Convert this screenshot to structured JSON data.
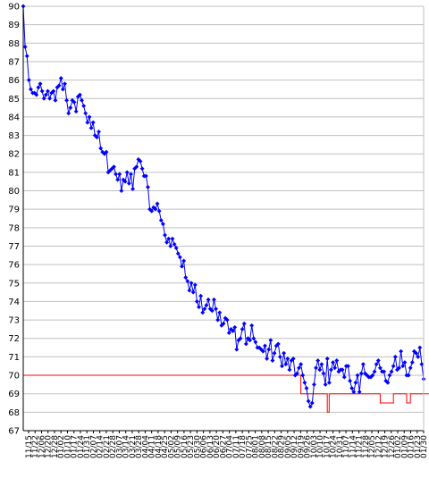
{
  "chart_data": {
    "type": "line",
    "title": "",
    "xlabel": "",
    "ylabel": "",
    "ylim": [
      67,
      90
    ],
    "yticks": [
      67,
      68,
      69,
      70,
      71,
      72,
      73,
      74,
      75,
      76,
      77,
      78,
      79,
      80,
      81,
      82,
      83,
      84,
      85,
      86,
      87,
      88,
      89,
      90
    ],
    "grid": true,
    "legend": "none",
    "x_tick_labels": [
      "11/15",
      "11/22",
      "12/06",
      "12/20",
      "12/28",
      "01/02",
      "01/10",
      "01/17",
      "01/24",
      "01/31",
      "02/07",
      "02/14",
      "02/21",
      "02/28",
      "03/07",
      "03/14",
      "03/21",
      "03/28",
      "04/04",
      "04/11",
      "04/18",
      "04/25",
      "05/02",
      "05/09",
      "05/16",
      "05/23",
      "05/30",
      "06/06",
      "06/13",
      "06/20",
      "06/27",
      "07/04",
      "07/11",
      "07/18",
      "07/25",
      "08/01",
      "08/08",
      "08/15",
      "08/22",
      "08/29",
      "09/05",
      "09/12",
      "09/19",
      "09/26",
      "10/03",
      "10/10",
      "10/17",
      "10/24",
      "10/31",
      "11/07",
      "11/14",
      "11/21",
      "11/28",
      "12/05",
      "12/12",
      "12/19",
      "12/26",
      "01/02",
      "01/09",
      "01/16",
      "01/23",
      "01/30"
    ],
    "series": [
      {
        "color": "#0000ff",
        "marker": "diamond",
        "values": [
          90.0,
          87.8,
          87.3,
          86.0,
          85.5,
          85.3,
          85.3,
          85.2,
          85.6,
          85.8,
          85.4,
          85.0,
          85.2,
          85.4,
          85.0,
          85.3,
          85.4,
          84.9,
          85.6,
          85.7,
          86.1,
          85.5,
          85.8,
          84.9,
          84.2,
          84.5,
          84.9,
          84.8,
          84.3,
          85.1,
          85.2,
          84.9,
          84.6,
          84.2,
          83.7,
          84.0,
          83.4,
          83.7,
          83.0,
          82.9,
          83.2,
          82.3,
          82.1,
          82.0,
          82.1,
          81.0,
          81.1,
          81.2,
          81.3,
          80.9,
          80.6,
          80.9,
          80.0,
          80.6,
          80.5,
          81.0,
          80.4,
          80.9,
          80.1,
          81.2,
          81.3,
          81.7,
          81.6,
          81.2,
          80.8,
          80.8,
          80.2,
          79.0,
          78.9,
          79.1,
          79.0,
          79.3,
          78.9,
          78.4,
          78.2,
          77.6,
          77.2,
          77.4,
          77.0,
          77.4,
          77.1,
          76.9,
          76.6,
          76.4,
          75.9,
          76.2,
          75.3,
          75.1,
          74.6,
          75.0,
          74.5,
          74.9,
          74.0,
          73.7,
          74.3,
          73.4,
          73.6,
          73.8,
          74.1,
          73.6,
          73.5,
          74.1,
          73.6,
          73.0,
          73.4,
          72.7,
          72.8,
          73.1,
          73.0,
          72.3,
          72.5,
          72.4,
          72.6,
          71.4,
          71.9,
          72.0,
          72.5,
          72.8,
          71.7,
          72.0,
          71.9,
          72.7,
          72.0,
          71.8,
          71.5,
          71.5,
          71.4,
          71.3,
          71.6,
          70.9,
          71.4,
          71.9,
          70.8,
          71.2,
          71.6,
          71.7,
          71.0,
          70.5,
          71.2,
          70.6,
          70.9,
          70.3,
          70.8,
          70.9,
          70.0,
          70.1,
          70.4,
          70.6,
          70.0,
          69.6,
          69.3,
          68.6,
          68.3,
          68.5,
          69.5,
          70.4,
          70.8,
          70.3,
          70.6,
          70.1,
          69.5,
          70.9,
          69.6,
          70.3,
          70.7,
          70.4,
          70.8,
          70.2,
          70.3,
          70.3,
          69.9,
          70.5,
          70.5,
          69.7,
          69.3,
          69.1,
          69.6,
          70.0,
          69.1,
          70.1,
          70.6,
          70.1,
          70.0,
          69.9,
          69.9,
          70.0,
          70.2,
          70.6,
          70.8,
          70.4,
          70.2,
          70.2,
          69.7,
          69.6,
          70.0,
          70.2,
          70.5,
          71.0,
          70.3,
          70.4,
          71.3,
          70.5,
          70.7,
          70.0,
          70.0,
          70.4,
          70.7,
          71.3,
          71.2,
          71.0,
          71.5,
          70.6,
          69.8
        ]
      },
      {
        "name_hidden": true,
        "color": "#ff0000",
        "step": true,
        "points": [
          [
            0,
            70
          ],
          [
            147,
            70
          ],
          [
            147,
            69
          ],
          [
            161,
            69
          ],
          [
            161,
            68
          ],
          [
            162,
            68
          ],
          [
            162,
            69
          ],
          [
            189,
            69
          ],
          [
            189,
            68.5
          ],
          [
            196,
            68.5
          ],
          [
            196,
            69
          ],
          [
            203,
            69
          ],
          [
            203,
            68.5
          ],
          [
            205,
            68.5
          ],
          [
            205,
            69
          ],
          [
            217,
            69
          ]
        ]
      }
    ]
  }
}
